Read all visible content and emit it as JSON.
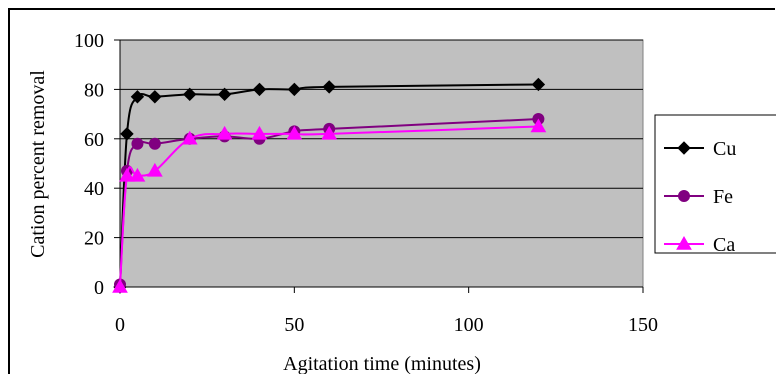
{
  "chart_data": {
    "type": "line",
    "title": "",
    "xlabel": "Agitation time (minutes)",
    "ylabel": "Cation percent removal",
    "xlim": [
      0,
      150
    ],
    "ylim": [
      0,
      100
    ],
    "xticks": [
      0,
      50,
      100,
      150
    ],
    "yticks": [
      0,
      20,
      40,
      60,
      80,
      100
    ],
    "grid": "horizontal",
    "plot_background": "#c0c0c0",
    "legend_position": "right",
    "series": [
      {
        "name": "Cu",
        "marker": "diamond",
        "color": "#000000",
        "points": [
          [
            0,
            0
          ],
          [
            2,
            62
          ],
          [
            5,
            77
          ],
          [
            10,
            77
          ],
          [
            20,
            78
          ],
          [
            30,
            78
          ],
          [
            40,
            80
          ],
          [
            50,
            80
          ],
          [
            60,
            81
          ],
          [
            120,
            82
          ]
        ]
      },
      {
        "name": "Fe",
        "marker": "circle",
        "color": "#800080",
        "points": [
          [
            0,
            1
          ],
          [
            2,
            47
          ],
          [
            5,
            58
          ],
          [
            10,
            58
          ],
          [
            20,
            60
          ],
          [
            30,
            61
          ],
          [
            40,
            60
          ],
          [
            50,
            63
          ],
          [
            60,
            64
          ],
          [
            120,
            68
          ]
        ]
      },
      {
        "name": "Ca",
        "marker": "triangle",
        "color": "#ff00ff",
        "points": [
          [
            0,
            0
          ],
          [
            2,
            45
          ],
          [
            5,
            45
          ],
          [
            10,
            47
          ],
          [
            20,
            60
          ],
          [
            30,
            62
          ],
          [
            40,
            62
          ],
          [
            50,
            62
          ],
          [
            60,
            62
          ],
          [
            120,
            65
          ]
        ]
      }
    ]
  }
}
